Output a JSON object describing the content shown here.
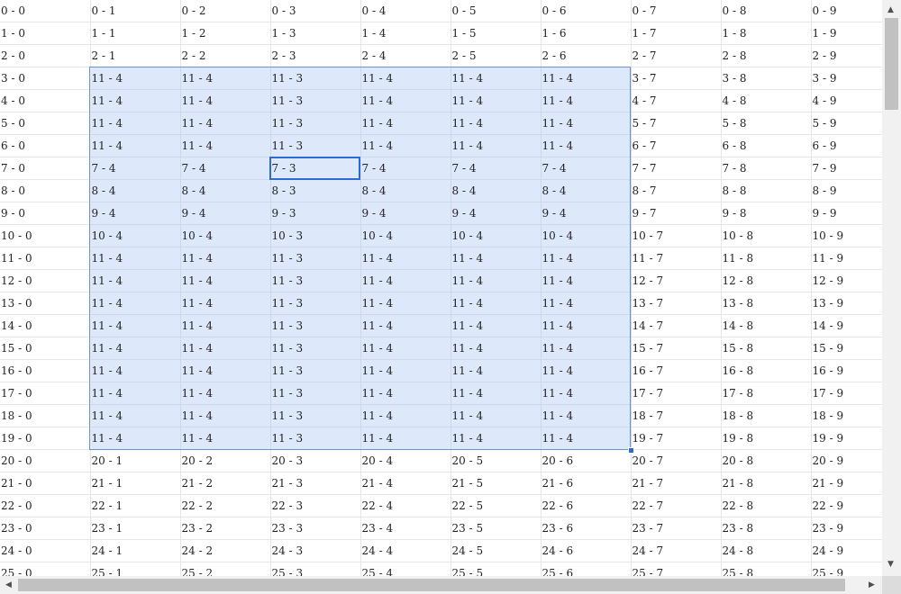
{
  "grid": {
    "rows": [
      [
        "0 - 0",
        "0 - 1",
        "0 - 2",
        "0 - 3",
        "0 - 4",
        "0 - 5",
        "0 - 6",
        "0 - 7",
        "0 - 8",
        "0 - 9"
      ],
      [
        "1 - 0",
        "1 - 1",
        "1 - 2",
        "1 - 3",
        "1 - 4",
        "1 - 5",
        "1 - 6",
        "1 - 7",
        "1 - 8",
        "1 - 9"
      ],
      [
        "2 - 0",
        "2 - 1",
        "2 - 2",
        "2 - 3",
        "2 - 4",
        "2 - 5",
        "2 - 6",
        "2 - 7",
        "2 - 8",
        "2 - 9"
      ],
      [
        "3 - 0",
        "11 - 4",
        "11 - 4",
        "11 - 3",
        "11 - 4",
        "11 - 4",
        "11 - 4",
        "3 - 7",
        "3 - 8",
        "3 - 9"
      ],
      [
        "4 - 0",
        "11 - 4",
        "11 - 4",
        "11 - 3",
        "11 - 4",
        "11 - 4",
        "11 - 4",
        "4 - 7",
        "4 - 8",
        "4 - 9"
      ],
      [
        "5 - 0",
        "11 - 4",
        "11 - 4",
        "11 - 3",
        "11 - 4",
        "11 - 4",
        "11 - 4",
        "5 - 7",
        "5 - 8",
        "5 - 9"
      ],
      [
        "6 - 0",
        "11 - 4",
        "11 - 4",
        "11 - 3",
        "11 - 4",
        "11 - 4",
        "11 - 4",
        "6 - 7",
        "6 - 8",
        "6 - 9"
      ],
      [
        "7 - 0",
        "7 - 4",
        "7 - 4",
        "7 - 3",
        "7 - 4",
        "7 - 4",
        "7 - 4",
        "7 - 7",
        "7 - 8",
        "7 - 9"
      ],
      [
        "8 - 0",
        "8 - 4",
        "8 - 4",
        "8 - 3",
        "8 - 4",
        "8 - 4",
        "8 - 4",
        "8 - 7",
        "8 - 8",
        "8 - 9"
      ],
      [
        "9 - 0",
        "9 - 4",
        "9 - 4",
        "9 - 3",
        "9 - 4",
        "9 - 4",
        "9 - 4",
        "9 - 7",
        "9 - 8",
        "9 - 9"
      ],
      [
        "10 - 0",
        "10 - 4",
        "10 - 4",
        "10 - 3",
        "10 - 4",
        "10 - 4",
        "10 - 4",
        "10 - 7",
        "10 - 8",
        "10 - 9"
      ],
      [
        "11 - 0",
        "11 - 4",
        "11 - 4",
        "11 - 3",
        "11 - 4",
        "11 - 4",
        "11 - 4",
        "11 - 7",
        "11 - 8",
        "11 - 9"
      ],
      [
        "12 - 0",
        "11 - 4",
        "11 - 4",
        "11 - 3",
        "11 - 4",
        "11 - 4",
        "11 - 4",
        "12 - 7",
        "12 - 8",
        "12 - 9"
      ],
      [
        "13 - 0",
        "11 - 4",
        "11 - 4",
        "11 - 3",
        "11 - 4",
        "11 - 4",
        "11 - 4",
        "13 - 7",
        "13 - 8",
        "13 - 9"
      ],
      [
        "14 - 0",
        "11 - 4",
        "11 - 4",
        "11 - 3",
        "11 - 4",
        "11 - 4",
        "11 - 4",
        "14 - 7",
        "14 - 8",
        "14 - 9"
      ],
      [
        "15 - 0",
        "11 - 4",
        "11 - 4",
        "11 - 3",
        "11 - 4",
        "11 - 4",
        "11 - 4",
        "15 - 7",
        "15 - 8",
        "15 - 9"
      ],
      [
        "16 - 0",
        "11 - 4",
        "11 - 4",
        "11 - 3",
        "11 - 4",
        "11 - 4",
        "11 - 4",
        "16 - 7",
        "16 - 8",
        "16 - 9"
      ],
      [
        "17 - 0",
        "11 - 4",
        "11 - 4",
        "11 - 3",
        "11 - 4",
        "11 - 4",
        "11 - 4",
        "17 - 7",
        "17 - 8",
        "17 - 9"
      ],
      [
        "18 - 0",
        "11 - 4",
        "11 - 4",
        "11 - 3",
        "11 - 4",
        "11 - 4",
        "11 - 4",
        "18 - 7",
        "18 - 8",
        "18 - 9"
      ],
      [
        "19 - 0",
        "11 - 4",
        "11 - 4",
        "11 - 3",
        "11 - 4",
        "11 - 4",
        "11 - 4",
        "19 - 7",
        "19 - 8",
        "19 - 9"
      ],
      [
        "20 - 0",
        "20 - 1",
        "20 - 2",
        "20 - 3",
        "20 - 4",
        "20 - 5",
        "20 - 6",
        "20 - 7",
        "20 - 8",
        "20 - 9"
      ],
      [
        "21 - 0",
        "21 - 1",
        "21 - 2",
        "21 - 3",
        "21 - 4",
        "21 - 5",
        "21 - 6",
        "21 - 7",
        "21 - 8",
        "21 - 9"
      ],
      [
        "22 - 0",
        "22 - 1",
        "22 - 2",
        "22 - 3",
        "22 - 4",
        "22 - 5",
        "22 - 6",
        "22 - 7",
        "22 - 8",
        "22 - 9"
      ],
      [
        "23 - 0",
        "23 - 1",
        "23 - 2",
        "23 - 3",
        "23 - 4",
        "23 - 5",
        "23 - 6",
        "23 - 7",
        "23 - 8",
        "23 - 9"
      ],
      [
        "24 - 0",
        "24 - 1",
        "24 - 2",
        "24 - 3",
        "24 - 4",
        "24 - 5",
        "24 - 6",
        "24 - 7",
        "24 - 8",
        "24 - 9"
      ],
      [
        "25 - 0",
        "25 - 1",
        "25 - 2",
        "25 - 3",
        "25 - 4",
        "25 - 5",
        "25 - 6",
        "25 - 7",
        "25 - 8",
        "25 - 9"
      ]
    ],
    "selection": {
      "row_start": 3,
      "row_end": 19,
      "col_start": 1,
      "col_end": 6
    },
    "active_cell": {
      "row": 7,
      "col": 3
    }
  },
  "colors": {
    "selection_fill": "#dde8fb",
    "selection_border": "#6d94cf",
    "active_border": "#2f6cd1"
  },
  "scrollbars": {
    "vertical": {
      "up_icon": "arrow-up-icon",
      "down_icon": "arrow-down-icon"
    },
    "horizontal": {
      "left_icon": "arrow-left-icon",
      "right_icon": "arrow-right-icon"
    }
  }
}
